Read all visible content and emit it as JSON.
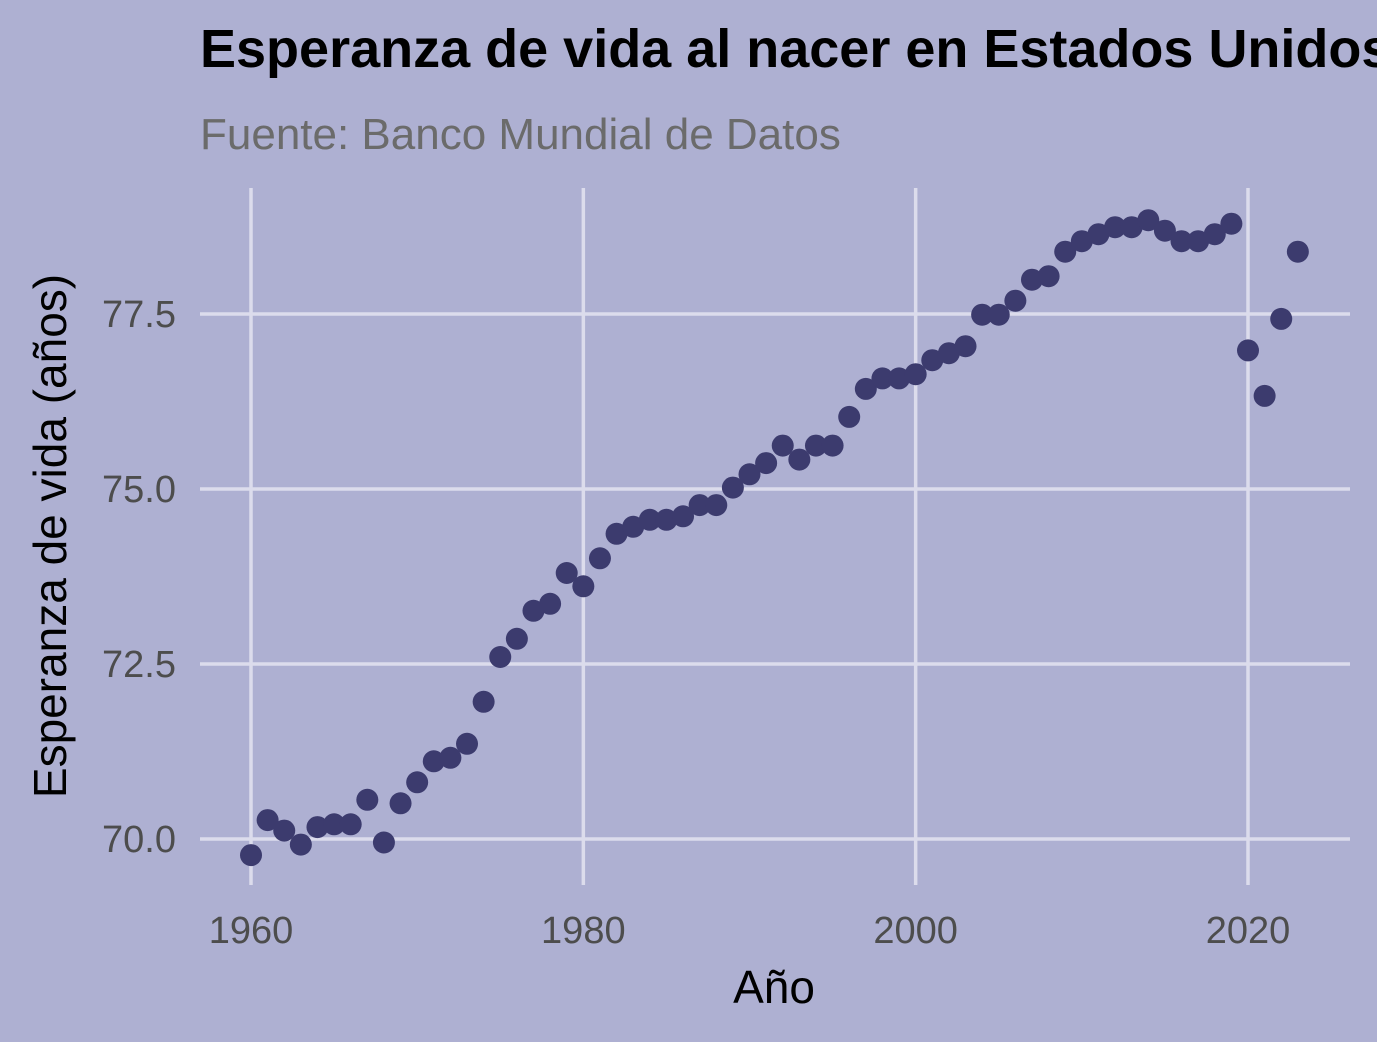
{
  "chart_data": {
    "type": "scatter",
    "title": "Esperanza de vida al nacer en Estados Unidos",
    "subtitle": "Fuente: Banco Mundial de Datos",
    "xlabel": "Año",
    "ylabel": "Esperanza de vida (años)",
    "xlim": [
      1959,
      2024
    ],
    "ylim": [
      69.4,
      79.3
    ],
    "x_ticks": [
      1960,
      1980,
      2000,
      2020
    ],
    "x_tick_labels": [
      "1960",
      "1980",
      "2000",
      "2020"
    ],
    "y_ticks": [
      70.0,
      72.5,
      75.0,
      77.5
    ],
    "y_tick_labels": [
      "70.0",
      "72.5",
      "75.0",
      "77.5"
    ],
    "grid": true,
    "colors": {
      "background": "#aeb0d2",
      "point": "#3c3b6e",
      "grid": "#dcdcec"
    },
    "x": [
      1960,
      1961,
      1962,
      1963,
      1964,
      1965,
      1966,
      1967,
      1968,
      1969,
      1970,
      1971,
      1972,
      1973,
      1974,
      1975,
      1976,
      1977,
      1978,
      1979,
      1980,
      1981,
      1982,
      1983,
      1984,
      1985,
      1986,
      1987,
      1988,
      1989,
      1990,
      1991,
      1992,
      1993,
      1994,
      1995,
      1996,
      1997,
      1998,
      1999,
      2000,
      2001,
      2002,
      2003,
      2004,
      2005,
      2006,
      2007,
      2008,
      2009,
      2010,
      2011,
      2012,
      2013,
      2014,
      2015,
      2016,
      2017,
      2018,
      2019,
      2020,
      2021,
      2022,
      2023
    ],
    "y": [
      69.77,
      70.27,
      70.12,
      69.92,
      70.17,
      70.21,
      70.21,
      70.56,
      69.95,
      70.51,
      70.81,
      71.11,
      71.16,
      71.36,
      71.96,
      72.6,
      72.86,
      73.26,
      73.36,
      73.8,
      73.61,
      74.01,
      74.36,
      74.46,
      74.56,
      74.56,
      74.61,
      74.77,
      74.77,
      75.02,
      75.21,
      75.37,
      75.62,
      75.42,
      75.62,
      75.62,
      76.03,
      76.43,
      76.58,
      76.58,
      76.64,
      76.84,
      76.94,
      77.04,
      77.49,
      77.49,
      77.69,
      77.99,
      78.04,
      78.39,
      78.54,
      78.64,
      78.74,
      78.74,
      78.84,
      78.69,
      78.54,
      78.54,
      78.64,
      78.79,
      76.98,
      76.33,
      77.43,
      78.39
    ]
  }
}
